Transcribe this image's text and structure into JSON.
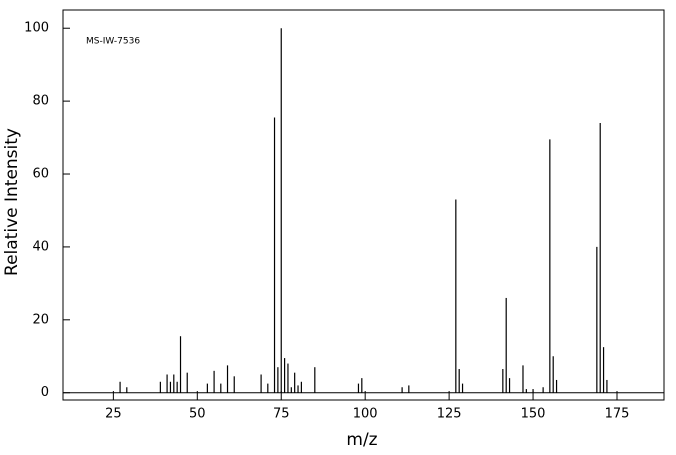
{
  "chart_data": {
    "type": "bar",
    "annotation": "MS-IW-7536",
    "xlabel": "m/z",
    "ylabel": "Relative Intensity",
    "x": [
      27,
      29,
      39,
      41,
      42,
      43,
      44,
      45,
      47,
      53,
      55,
      57,
      59,
      61,
      69,
      71,
      73,
      74,
      75,
      76,
      77,
      78,
      79,
      80,
      81,
      85,
      98,
      99,
      111,
      113,
      127,
      128,
      129,
      141,
      142,
      143,
      147,
      148,
      150,
      153,
      155,
      156,
      157,
      169,
      170,
      171,
      172
    ],
    "values": [
      3,
      1.5,
      3,
      5,
      3,
      5,
      3,
      15.5,
      5.5,
      2.5,
      6,
      2.5,
      7.5,
      4.5,
      5,
      2.5,
      75.5,
      7,
      100,
      9.5,
      8,
      1.5,
      5.5,
      2,
      3,
      7,
      2.5,
      4,
      1.5,
      2,
      53,
      6.5,
      2.5,
      6.5,
      26,
      4,
      7.5,
      1,
      1,
      1.5,
      69.5,
      10,
      3.5,
      40,
      74,
      12.5,
      3.5
    ],
    "color": "#000000",
    "xlim": [
      10,
      189
    ],
    "ylim": [
      -2,
      105
    ],
    "xticks": [
      25,
      50,
      75,
      100,
      125,
      150,
      175
    ],
    "yticks": [
      0,
      20,
      40,
      60,
      80,
      100
    ]
  }
}
